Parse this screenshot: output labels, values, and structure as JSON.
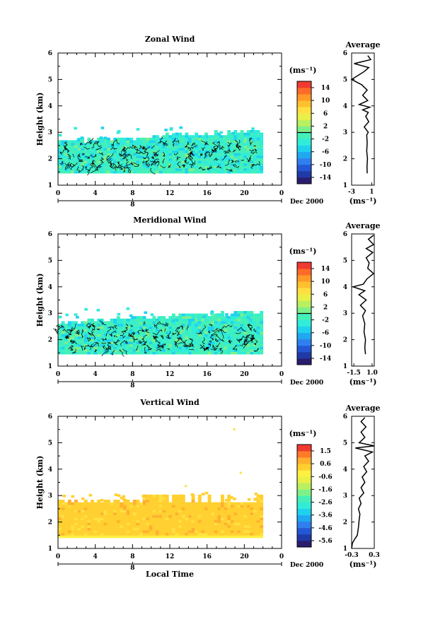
{
  "chart_data": [
    {
      "type": "heatmap",
      "title": "Zonal Wind",
      "xlabel": "",
      "ylabel": "Height (km)",
      "x_ticks": [
        "0",
        "4",
        "8",
        "12",
        "16",
        "20",
        "0"
      ],
      "xlim": [
        0,
        24
      ],
      "y_ticks": [
        "1",
        "2",
        "3",
        "4",
        "5",
        "6"
      ],
      "ylim": [
        1,
        6
      ],
      "date_marker": "8",
      "date_label": "Dec 2000",
      "colorbar": {
        "unit": "(ms⁻¹)",
        "ticks": [
          "14",
          "10",
          "6",
          "2",
          "-2",
          "-6",
          "-10",
          "-14"
        ],
        "range": [
          -16,
          16
        ],
        "zero_line": 0
      },
      "data_extent": {
        "time": [
          0,
          22
        ],
        "height": [
          1.45,
          3.2
        ],
        "dominant_range": [
          -3,
          1
        ],
        "contour_level": 0
      },
      "average": {
        "title": "Average",
        "xlabel": "(ms⁻¹)",
        "x_ticks": [
          "-3",
          "1"
        ],
        "xlim": [
          -3,
          1.5
        ],
        "y_ticks": [
          "1",
          "2",
          "3",
          "4",
          "5",
          "6"
        ],
        "profile": [
          [
            0.1,
            1.45
          ],
          [
            0.05,
            1.7
          ],
          [
            0.15,
            2.0
          ],
          [
            0.0,
            2.3
          ],
          [
            0.1,
            2.6
          ],
          [
            0.0,
            2.9
          ],
          [
            0.3,
            3.0
          ],
          [
            -0.5,
            3.2
          ],
          [
            0.4,
            3.4
          ],
          [
            -0.2,
            3.6
          ],
          [
            0.3,
            3.75
          ],
          [
            -0.8,
            3.85
          ],
          [
            0.6,
            3.95
          ],
          [
            -1.5,
            4.05
          ],
          [
            0.2,
            4.2
          ],
          [
            -0.8,
            4.4
          ],
          [
            0.1,
            4.6
          ],
          [
            -1.0,
            4.8
          ],
          [
            -3.0,
            5.0
          ],
          [
            -0.5,
            5.3
          ],
          [
            0.4,
            5.45
          ],
          [
            -2.5,
            5.6
          ],
          [
            0.8,
            5.75
          ],
          [
            0.2,
            5.9
          ]
        ]
      }
    },
    {
      "type": "heatmap",
      "title": "Meridional Wind",
      "xlabel": "",
      "ylabel": "Height (km)",
      "x_ticks": [
        "0",
        "4",
        "8",
        "12",
        "16",
        "20",
        "0"
      ],
      "xlim": [
        0,
        24
      ],
      "y_ticks": [
        "1",
        "2",
        "3",
        "4",
        "5",
        "6"
      ],
      "ylim": [
        1,
        6
      ],
      "date_marker": "8",
      "date_label": "Dec 2000",
      "colorbar": {
        "unit": "(ms⁻¹)",
        "ticks": [
          "14",
          "10",
          "6",
          "2",
          "-2",
          "-6",
          "-10",
          "-14"
        ],
        "range": [
          -16,
          16
        ],
        "zero_line": 0
      },
      "data_extent": {
        "time": [
          0,
          22
        ],
        "height": [
          1.45,
          3.3
        ],
        "dominant_range": [
          -4,
          1
        ],
        "contour_level": 0
      },
      "average": {
        "title": "Average",
        "xlabel": "(ms⁻¹)",
        "x_ticks": [
          "-1.5",
          "1.0"
        ],
        "xlim": [
          -1.8,
          1.3
        ],
        "y_ticks": [
          "1",
          "2",
          "3",
          "4",
          "5",
          "6"
        ],
        "profile": [
          [
            0.1,
            1.45
          ],
          [
            0.0,
            1.7
          ],
          [
            0.1,
            2.0
          ],
          [
            -0.1,
            2.3
          ],
          [
            0.0,
            2.6
          ],
          [
            -0.3,
            2.9
          ],
          [
            0.1,
            3.1
          ],
          [
            -0.6,
            3.3
          ],
          [
            0.2,
            3.5
          ],
          [
            -0.8,
            3.7
          ],
          [
            0.0,
            3.85
          ],
          [
            -1.6,
            4.0
          ],
          [
            -0.2,
            4.1
          ],
          [
            0.3,
            4.3
          ],
          [
            1.2,
            4.5
          ],
          [
            0.4,
            4.7
          ],
          [
            0.6,
            4.9
          ],
          [
            0.2,
            5.1
          ],
          [
            1.1,
            5.3
          ],
          [
            0.2,
            5.45
          ],
          [
            1.2,
            5.6
          ],
          [
            0.5,
            5.8
          ],
          [
            1.2,
            5.95
          ]
        ]
      }
    },
    {
      "type": "heatmap",
      "title": "Vertical Wind",
      "xlabel": "Local Time",
      "ylabel": "Height (km)",
      "x_ticks": [
        "0",
        "4",
        "8",
        "12",
        "16",
        "20",
        "0"
      ],
      "xlim": [
        0,
        24
      ],
      "y_ticks": [
        "1",
        "2",
        "3",
        "4",
        "5",
        "6"
      ],
      "ylim": [
        1,
        6
      ],
      "date_marker": "8",
      "date_label": "Dec 2000",
      "colorbar": {
        "unit": "(ms⁻¹)",
        "ticks": [
          "1.5",
          "0.6",
          "-0.6",
          "-1.6",
          "-2.6",
          "-3.6",
          "-4.6",
          "-5.6"
        ],
        "range": [
          -6,
          2
        ],
        "zero_line": null
      },
      "data_extent": {
        "time": [
          0,
          22
        ],
        "height": [
          1.4,
          3.0
        ],
        "dominant_range": [
          0.2,
          1.0
        ],
        "contour_level": null
      },
      "average": {
        "title": "Average",
        "xlabel": "(ms⁻¹)",
        "x_ticks": [
          "-0.3",
          "0.3"
        ],
        "xlim": [
          -0.3,
          0.3
        ],
        "y_ticks": [
          "1",
          "2",
          "3",
          "4",
          "5",
          "6"
        ],
        "profile": [
          [
            -0.3,
            1.0
          ],
          [
            -0.28,
            1.2
          ],
          [
            -0.22,
            1.35
          ],
          [
            -0.15,
            1.5
          ],
          [
            -0.12,
            1.8
          ],
          [
            -0.1,
            2.1
          ],
          [
            -0.08,
            2.3
          ],
          [
            -0.12,
            2.5
          ],
          [
            -0.05,
            2.7
          ],
          [
            -0.1,
            2.9
          ],
          [
            0.02,
            3.1
          ],
          [
            -0.05,
            3.3
          ],
          [
            0.05,
            3.5
          ],
          [
            -0.02,
            3.7
          ],
          [
            0.1,
            3.9
          ],
          [
            0.02,
            4.1
          ],
          [
            0.15,
            4.3
          ],
          [
            0.05,
            4.5
          ],
          [
            0.25,
            4.65
          ],
          [
            -0.2,
            4.8
          ],
          [
            0.3,
            4.88
          ],
          [
            -0.1,
            5.0
          ],
          [
            0.05,
            5.2
          ],
          [
            -0.05,
            5.4
          ],
          [
            0.08,
            5.6
          ],
          [
            -0.05,
            5.8
          ],
          [
            0.05,
            5.95
          ]
        ]
      }
    }
  ]
}
